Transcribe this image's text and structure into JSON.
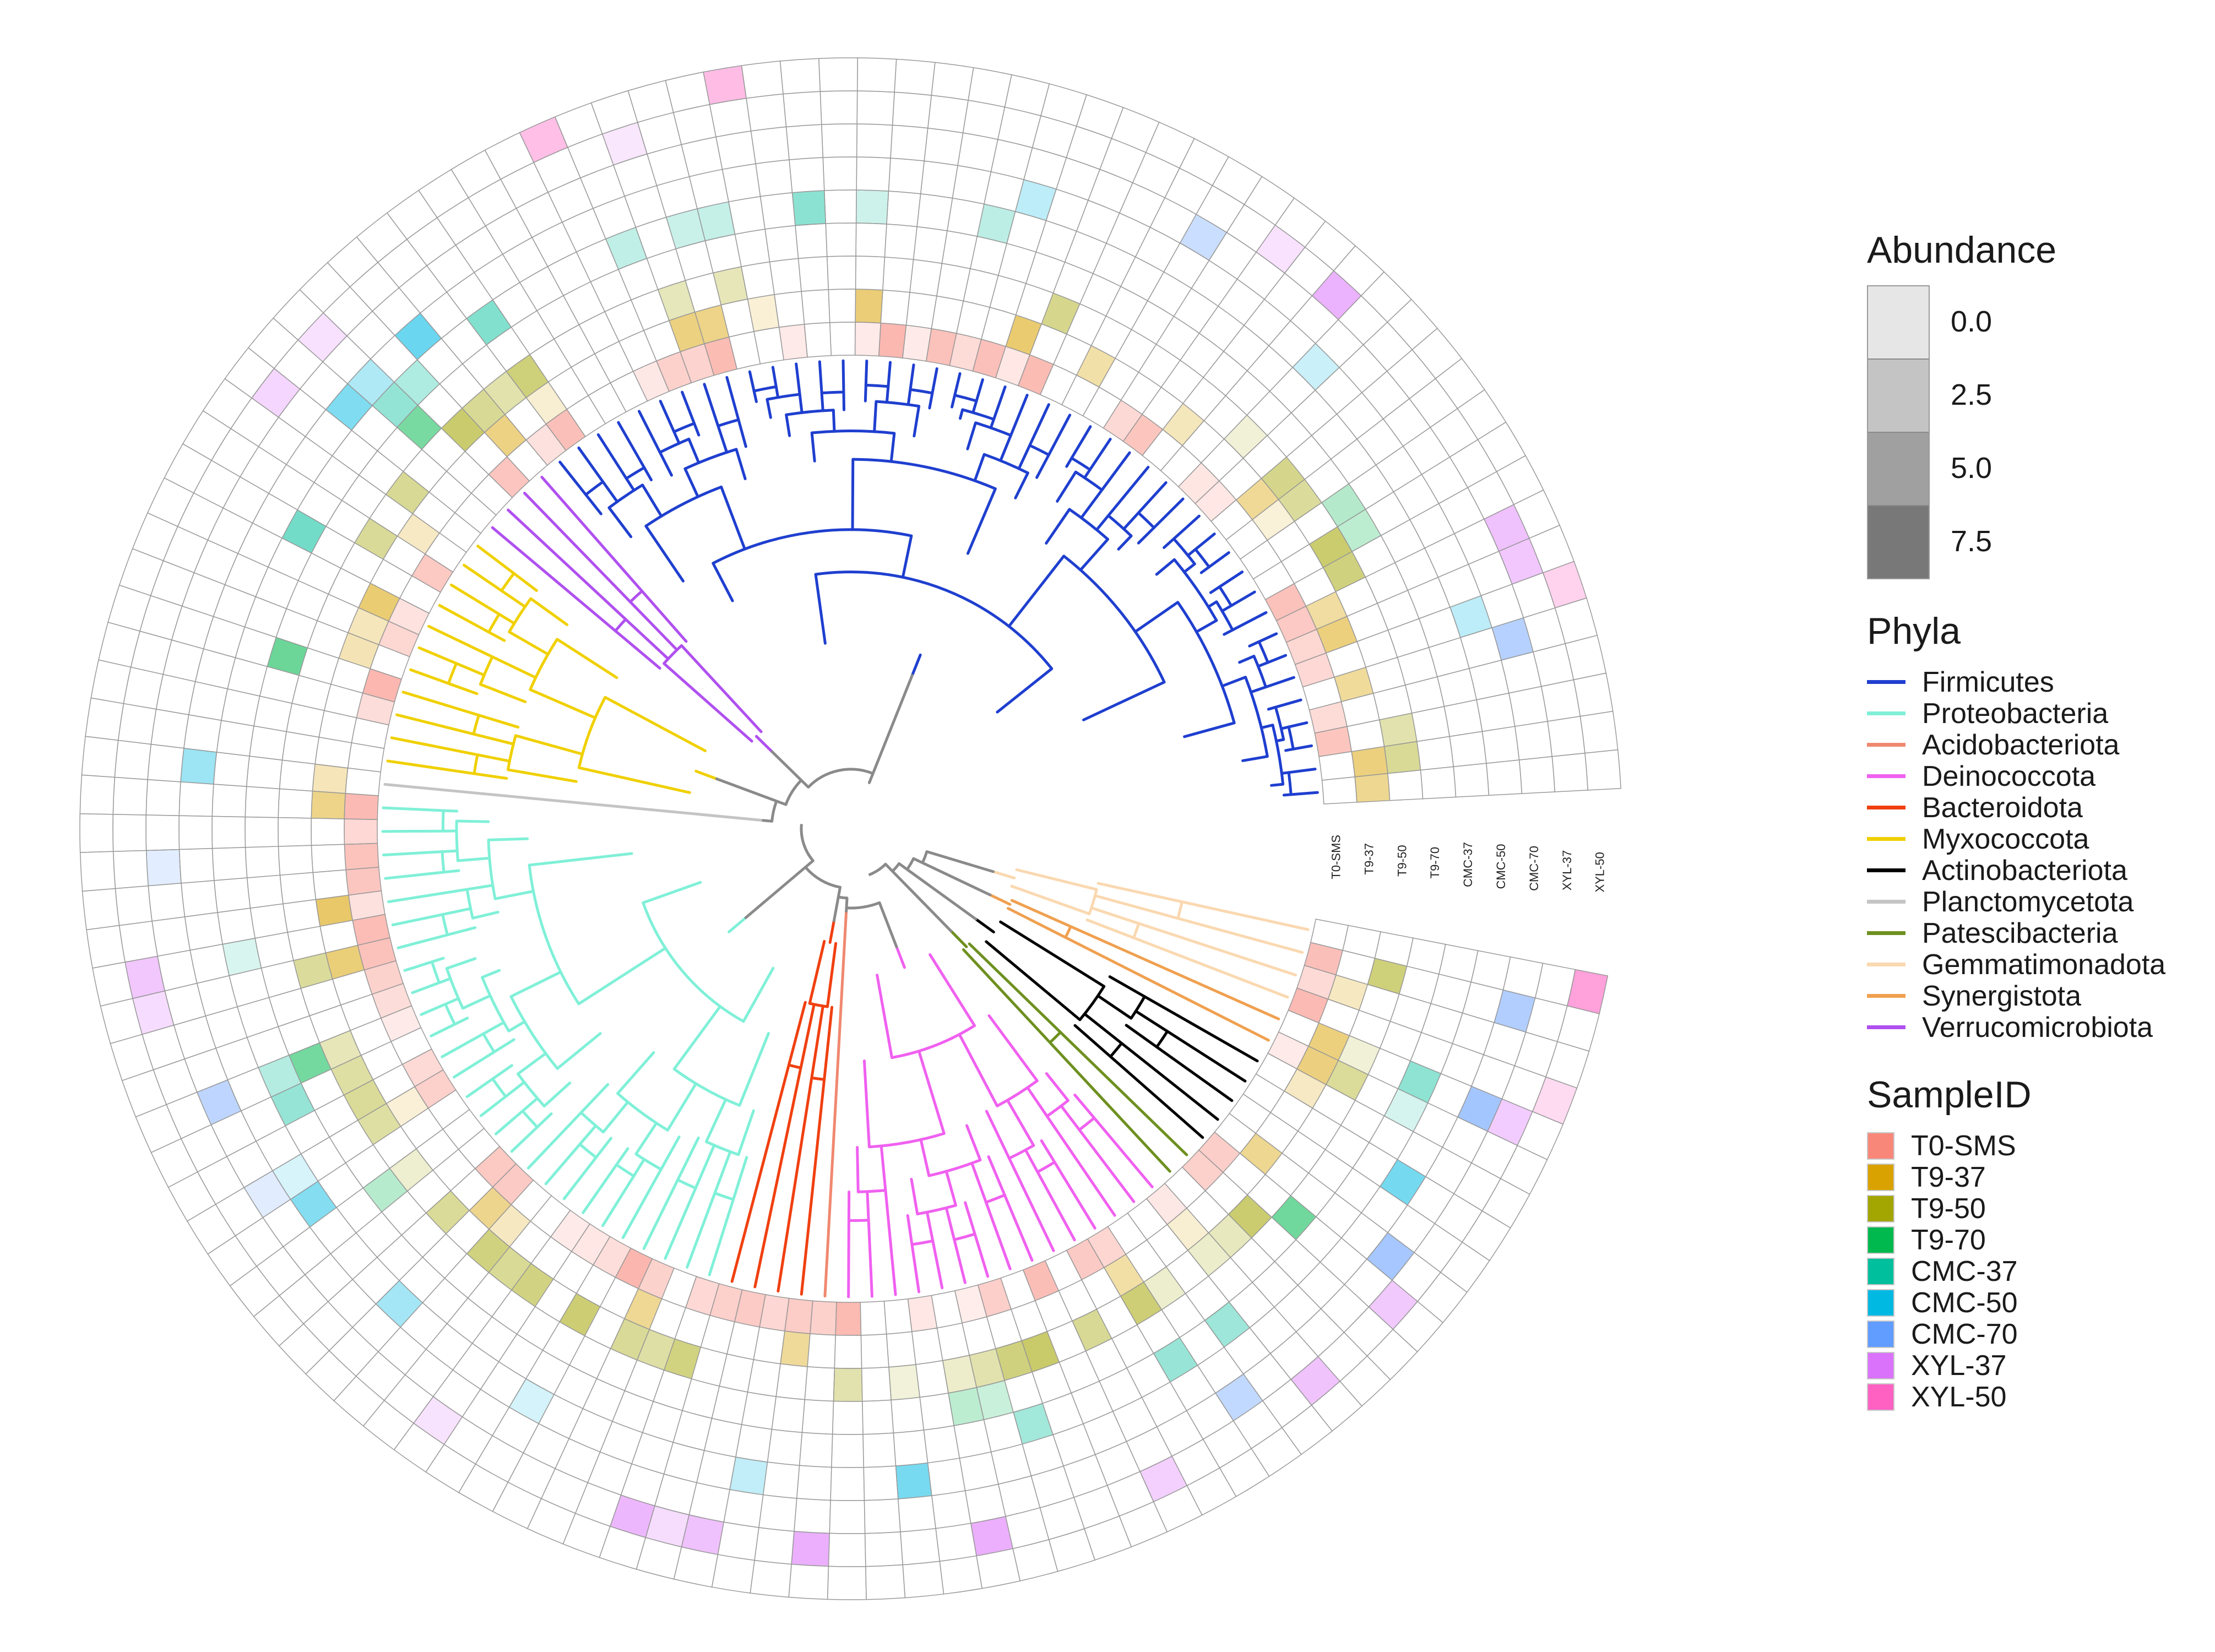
{
  "legend": {
    "abundance_title": "Abundance",
    "abundance_levels": [
      "0.0",
      "2.5",
      "5.0",
      "7.5"
    ],
    "abundance_colors": [
      "#e6e6e6",
      "#c4c4c4",
      "#a0a0a0",
      "#787878"
    ],
    "phyla_title": "Phyla",
    "phyla": [
      {
        "name": "Firmicutes",
        "color": "#1f3fcf"
      },
      {
        "name": "Proteobacteria",
        "color": "#80f0d8"
      },
      {
        "name": "Acidobacteriota",
        "color": "#f08870"
      },
      {
        "name": "Deinococcota",
        "color": "#f060f0"
      },
      {
        "name": "Bacteroidota",
        "color": "#f04010"
      },
      {
        "name": "Myxococcota",
        "color": "#f0d000"
      },
      {
        "name": "Actinobacteriota",
        "color": "#000000"
      },
      {
        "name": "Planctomycetota",
        "color": "#c4c4c4"
      },
      {
        "name": "Patescibacteria",
        "color": "#6e9020"
      },
      {
        "name": "Gemmatimonadota",
        "color": "#fad8b0"
      },
      {
        "name": "Synergistota",
        "color": "#f0a050"
      },
      {
        "name": "Verrucomicrobiota",
        "color": "#b050f0"
      }
    ],
    "sample_title": "SampleID",
    "samples": [
      {
        "name": "T0-SMS",
        "color": "#f8877a"
      },
      {
        "name": "T9-37",
        "color": "#d9a200"
      },
      {
        "name": "T9-50",
        "color": "#a3a500"
      },
      {
        "name": "T9-70",
        "color": "#00b94e"
      },
      {
        "name": "CMC-37",
        "color": "#00bf9c"
      },
      {
        "name": "CMC-50",
        "color": "#00b9e3"
      },
      {
        "name": "CMC-70",
        "color": "#619cff"
      },
      {
        "name": "XYL-37",
        "color": "#db72fb"
      },
      {
        "name": "XYL-50",
        "color": "#ff61c3"
      }
    ]
  },
  "ring_labels": [
    "T0-SMS",
    "T9-37",
    "T9-50",
    "T9-70",
    "CMC-37",
    "CMC-50",
    "CMC-70",
    "XYL-37",
    "XYL-50"
  ],
  "tree": {
    "clades": [
      {
        "phylum": "Firmicutes",
        "tips": 44
      },
      {
        "phylum": "Verrucomicrobiota",
        "tips": 4
      },
      {
        "phylum": "Myxococcota",
        "tips": 11
      },
      {
        "phylum": "Planctomycetota",
        "tips": 1
      },
      {
        "phylum": "Proteobacteria",
        "tips": 27
      },
      {
        "phylum": "Bacteroidota",
        "tips": 4
      },
      {
        "phylum": "Acidobacteriota",
        "tips": 1
      },
      {
        "phylum": "Deinococcota",
        "tips": 15
      },
      {
        "phylum": "Patescibacteria",
        "tips": 2
      },
      {
        "phylum": "Actinobacteriota",
        "tips": 5
      },
      {
        "phylum": "Synergistota",
        "tips": 2
      },
      {
        "phylum": "Gemmatimonadota",
        "tips": 4
      }
    ]
  }
}
